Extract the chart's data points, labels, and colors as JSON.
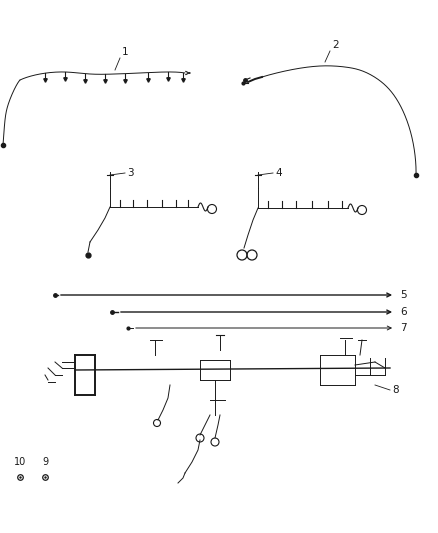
{
  "background_color": "#ffffff",
  "line_color": "#1a1a1a",
  "text_color": "#1a1a1a",
  "fig_width": 4.38,
  "fig_height": 5.33,
  "dpi": 100,
  "label_fs": 7.5,
  "lw_main": 1.0,
  "lw_thin": 0.7,
  "lw_thick": 1.4
}
